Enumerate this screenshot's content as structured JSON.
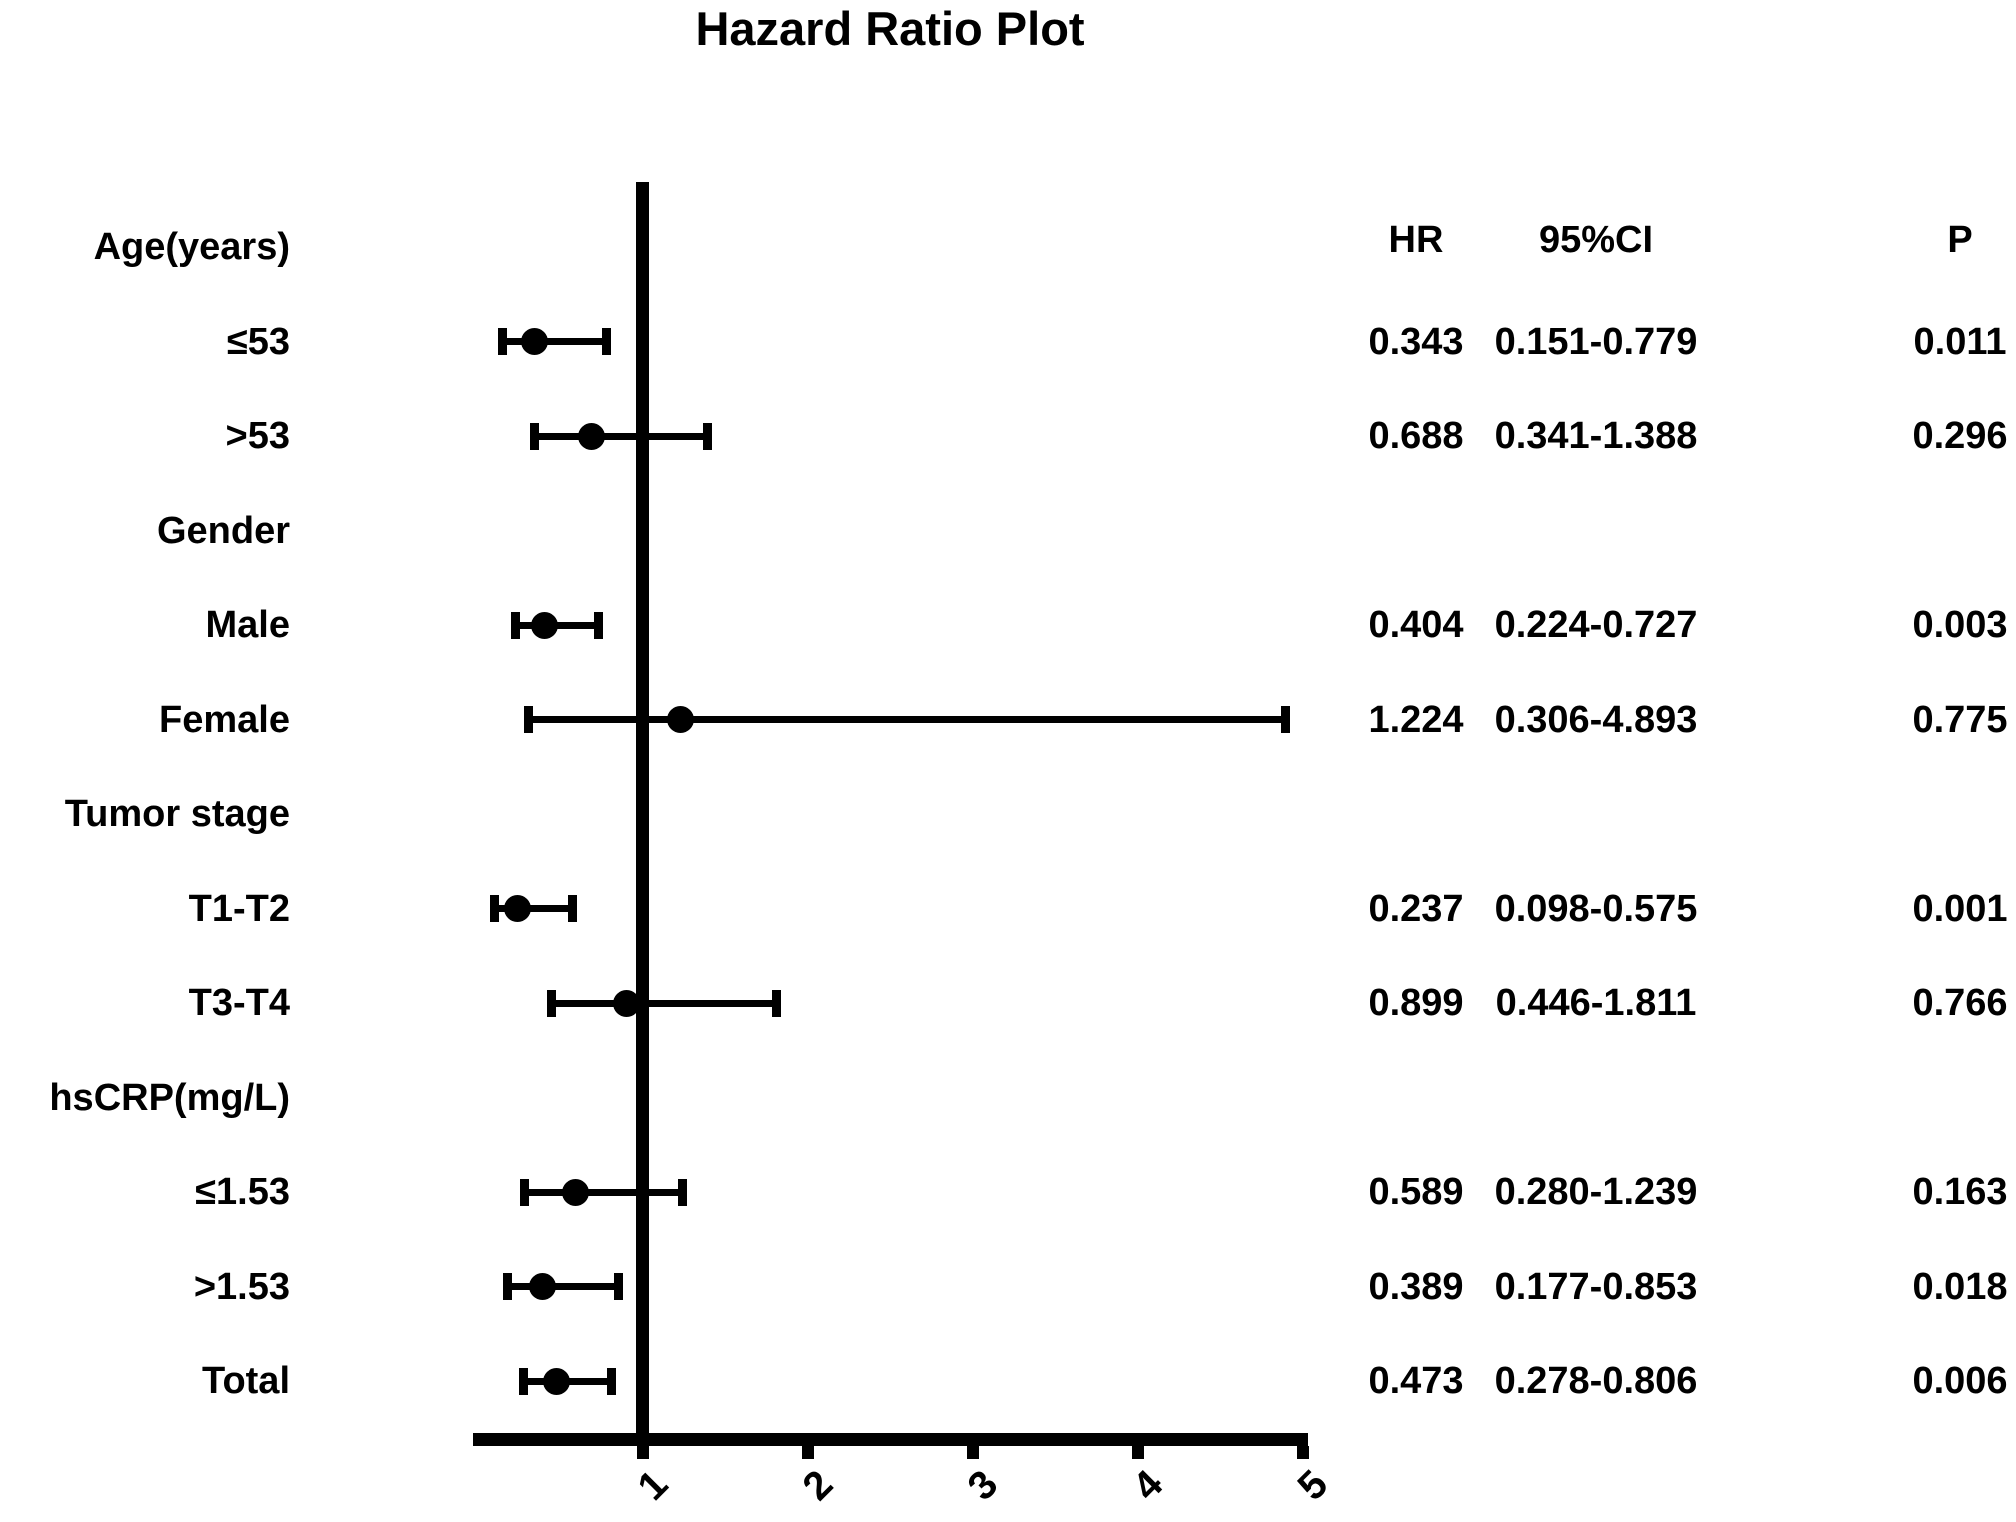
{
  "title": "Hazard Ratio Plot",
  "columns": {
    "hr": "HR",
    "ci": "95%CI",
    "p": "P"
  },
  "chart_data": {
    "type": "forest",
    "title": "Hazard Ratio Plot",
    "xlabel": "",
    "xlim": [
      0,
      5
    ],
    "x_ticks": [
      "1",
      "2",
      "3",
      "4",
      "5"
    ],
    "reference_line_x": 1,
    "grid": false,
    "columns": [
      "HR",
      "95%CI",
      "P"
    ],
    "colors": {
      "foreground": "#000000",
      "background": "#ffffff"
    },
    "rows": [
      {
        "label": "Age(years)",
        "group": true
      },
      {
        "label": "≤53",
        "group": false,
        "hr": 0.343,
        "hr_text": "0.343",
        "ci_low": 0.151,
        "ci_high": 0.779,
        "ci_text": "0.151-0.779",
        "p_text": "0.011"
      },
      {
        "label": ">53",
        "group": false,
        "hr": 0.688,
        "hr_text": "0.688",
        "ci_low": 0.341,
        "ci_high": 1.388,
        "ci_text": "0.341-1.388",
        "p_text": "0.296"
      },
      {
        "label": "Gender",
        "group": true
      },
      {
        "label": "Male",
        "group": false,
        "hr": 0.404,
        "hr_text": "0.404",
        "ci_low": 0.224,
        "ci_high": 0.727,
        "ci_text": "0.224-0.727",
        "p_text": "0.003"
      },
      {
        "label": "Female",
        "group": false,
        "hr": 1.224,
        "hr_text": "1.224",
        "ci_low": 0.306,
        "ci_high": 4.893,
        "ci_text": "0.306-4.893",
        "p_text": "0.775"
      },
      {
        "label": "Tumor stage",
        "group": true
      },
      {
        "label": "T1-T2",
        "group": false,
        "hr": 0.237,
        "hr_text": "0.237",
        "ci_low": 0.098,
        "ci_high": 0.575,
        "ci_text": "0.098-0.575",
        "p_text": "0.001"
      },
      {
        "label": "T3-T4",
        "group": false,
        "hr": 0.899,
        "hr_text": "0.899",
        "ci_low": 0.446,
        "ci_high": 1.811,
        "ci_text": "0.446-1.811",
        "p_text": "0.766"
      },
      {
        "label": "hsCRP(mg/L)",
        "group": true
      },
      {
        "label": "≤1.53",
        "group": false,
        "hr": 0.589,
        "hr_text": "0.589",
        "ci_low": 0.28,
        "ci_high": 1.239,
        "ci_text": "0.280-1.239",
        "p_text": "0.163"
      },
      {
        "label": ">1.53",
        "group": false,
        "hr": 0.389,
        "hr_text": "0.389",
        "ci_low": 0.177,
        "ci_high": 0.853,
        "ci_text": "0.177-0.853",
        "p_text": "0.018"
      },
      {
        "label": "Total",
        "group": false,
        "hr": 0.473,
        "hr_text": "0.473",
        "ci_low": 0.278,
        "ci_high": 0.806,
        "ci_text": "0.278-0.806",
        "p_text": "0.006"
      }
    ]
  }
}
